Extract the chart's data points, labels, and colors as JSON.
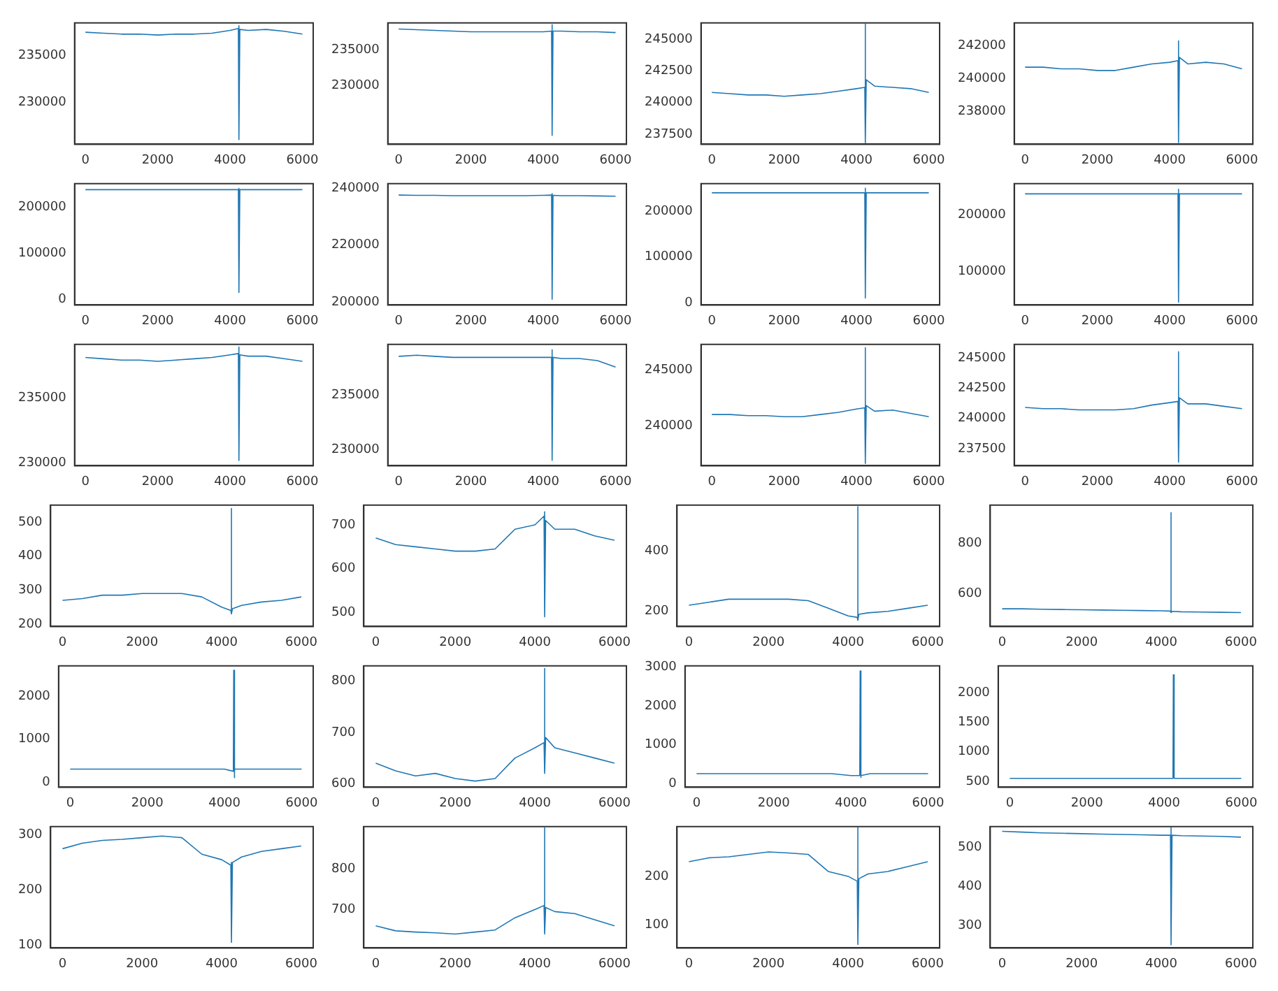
{
  "chart_data": [
    {
      "type": "line",
      "color": "#1f77b4",
      "xlim": [
        -300,
        6300
      ],
      "xticks": [
        0,
        2000,
        4000,
        6000
      ],
      "ylim": [
        225500,
        238500
      ],
      "yticks": [
        230000,
        235000
      ],
      "x": [
        0,
        500,
        1000,
        1500,
        2000,
        2500,
        3000,
        3500,
        4000,
        4230,
        4240,
        4250,
        4270,
        4500,
        5000,
        5500,
        6000
      ],
      "values": [
        237500,
        237400,
        237300,
        237300,
        237200,
        237300,
        237300,
        237400,
        237700,
        237900,
        238200,
        226000,
        237800,
        237700,
        237800,
        237600,
        237300
      ]
    },
    {
      "type": "line",
      "color": "#1f77b4",
      "xlim": [
        -300,
        6300
      ],
      "xticks": [
        0,
        2000,
        4000,
        6000
      ],
      "ylim": [
        221750,
        238750
      ],
      "yticks": [
        230000,
        235000
      ],
      "x": [
        0,
        500,
        1000,
        1500,
        2000,
        2500,
        3000,
        3500,
        4000,
        4230,
        4240,
        4250,
        4270,
        4500,
        5000,
        5500,
        6000
      ],
      "values": [
        237900,
        237800,
        237700,
        237600,
        237500,
        237500,
        237500,
        237500,
        237500,
        237600,
        238500,
        223000,
        237600,
        237600,
        237500,
        237500,
        237400
      ]
    },
    {
      "type": "line",
      "color": "#1f77b4",
      "xlim": [
        -300,
        6300
      ],
      "xticks": [
        0,
        2000,
        4000,
        6000
      ],
      "ylim": [
        236700,
        246300
      ],
      "yticks": [
        237500,
        240000,
        242500,
        245000
      ],
      "x": [
        0,
        500,
        1000,
        1500,
        2000,
        2500,
        3000,
        3500,
        4000,
        4230,
        4240,
        4250,
        4270,
        4500,
        5000,
        5500,
        6000
      ],
      "values": [
        240800,
        240700,
        240600,
        240600,
        240500,
        240600,
        240700,
        240900,
        241100,
        241200,
        246200,
        236800,
        241800,
        241300,
        241200,
        241100,
        240800
      ]
    },
    {
      "type": "line",
      "color": "#1f77b4",
      "xlim": [
        -300,
        6300
      ],
      "xticks": [
        0,
        2000,
        4000,
        6000
      ],
      "ylim": [
        236000,
        243400
      ],
      "yticks": [
        238000,
        240000,
        242000
      ],
      "x": [
        0,
        500,
        1000,
        1500,
        2000,
        2500,
        3000,
        3500,
        4000,
        4230,
        4240,
        4250,
        4270,
        4500,
        5000,
        5500,
        6000
      ],
      "values": [
        240700,
        240700,
        240600,
        240600,
        240500,
        240500,
        240700,
        240900,
        241000,
        241100,
        242300,
        236100,
        241300,
        240900,
        241000,
        240900,
        240600
      ]
    },
    {
      "type": "line",
      "color": "#1f77b4",
      "xlim": [
        -300,
        6300
      ],
      "xticks": [
        0,
        2000,
        4000,
        6000
      ],
      "ylim": [
        -12000,
        250000
      ],
      "yticks": [
        0,
        100000,
        200000
      ],
      "x": [
        0,
        500,
        1000,
        1500,
        2000,
        2500,
        3000,
        3500,
        4000,
        4230,
        4240,
        4250,
        4270,
        4500,
        5000,
        5500,
        6000
      ],
      "values": [
        237000,
        237000,
        237000,
        237000,
        237000,
        237000,
        237000,
        237000,
        237000,
        237000,
        240000,
        15000,
        237000,
        237000,
        237000,
        237000,
        237000
      ]
    },
    {
      "type": "line",
      "color": "#1f77b4",
      "xlim": [
        -300,
        6300
      ],
      "xticks": [
        0,
        2000,
        4000,
        6000
      ],
      "ylim": [
        199000,
        241500
      ],
      "yticks": [
        200000,
        220000,
        240000
      ],
      "x": [
        0,
        500,
        1000,
        1500,
        2000,
        2500,
        3000,
        3500,
        4000,
        4230,
        4240,
        4250,
        4270,
        4500,
        5000,
        5500,
        6000
      ],
      "values": [
        237500,
        237400,
        237400,
        237300,
        237300,
        237300,
        237300,
        237300,
        237400,
        237500,
        238000,
        201000,
        237400,
        237300,
        237300,
        237200,
        237100
      ]
    },
    {
      "type": "line",
      "color": "#1f77b4",
      "xlim": [
        -300,
        6300
      ],
      "xticks": [
        0,
        2000,
        4000,
        6000
      ],
      "ylim": [
        -5000,
        260000
      ],
      "yticks": [
        0,
        100000,
        200000
      ],
      "x": [
        0,
        500,
        1000,
        1500,
        2000,
        2500,
        3000,
        3500,
        4000,
        4230,
        4240,
        4250,
        4270,
        4500,
        5000,
        5500,
        6000
      ],
      "values": [
        240000,
        240000,
        240000,
        240000,
        240000,
        240000,
        240000,
        240000,
        240000,
        240000,
        250000,
        10000,
        240000,
        240000,
        240000,
        240000,
        240000
      ]
    },
    {
      "type": "line",
      "color": "#1f77b4",
      "xlim": [
        -300,
        6300
      ],
      "xticks": [
        0,
        2000,
        4000,
        6000
      ],
      "ylim": [
        40000,
        255000
      ],
      "yticks": [
        100000,
        200000
      ],
      "x": [
        0,
        500,
        1000,
        1500,
        2000,
        2500,
        3000,
        3500,
        4000,
        4230,
        4240,
        4250,
        4270,
        4500,
        5000,
        5500,
        6000
      ],
      "values": [
        237000,
        237000,
        237000,
        237000,
        237000,
        237000,
        237000,
        237000,
        237000,
        237000,
        245000,
        45000,
        237000,
        237000,
        237000,
        237000,
        237000
      ]
    },
    {
      "type": "line",
      "color": "#1f77b4",
      "xlim": [
        -300,
        6300
      ],
      "xticks": [
        0,
        2000,
        4000,
        6000
      ],
      "ylim": [
        229800,
        239100
      ],
      "yticks": [
        230000,
        235000
      ],
      "x": [
        0,
        500,
        1000,
        1500,
        2000,
        2500,
        3000,
        3500,
        4000,
        4230,
        4240,
        4250,
        4270,
        4500,
        5000,
        5500,
        6000
      ],
      "values": [
        238100,
        238000,
        237900,
        237900,
        237800,
        237900,
        238000,
        238100,
        238300,
        238400,
        238900,
        230200,
        238300,
        238200,
        238200,
        238000,
        237800
      ]
    },
    {
      "type": "line",
      "color": "#1f77b4",
      "xlim": [
        -300,
        6300
      ],
      "xticks": [
        0,
        2000,
        4000,
        6000
      ],
      "ylim": [
        228500,
        239700
      ],
      "yticks": [
        230000,
        235000
      ],
      "x": [
        0,
        500,
        1000,
        1500,
        2000,
        2500,
        3000,
        3500,
        4000,
        4230,
        4240,
        4250,
        4270,
        4500,
        5000,
        5500,
        6000
      ],
      "values": [
        238600,
        238700,
        238600,
        238500,
        238500,
        238500,
        238500,
        238500,
        238500,
        238500,
        239200,
        229000,
        238500,
        238400,
        238400,
        238200,
        237600
      ]
    },
    {
      "type": "line",
      "color": "#1f77b4",
      "xlim": [
        -300,
        6300
      ],
      "xticks": [
        0,
        2000,
        4000,
        6000
      ],
      "ylim": [
        236400,
        247300
      ],
      "yticks": [
        240000,
        245000
      ],
      "x": [
        0,
        500,
        1000,
        1500,
        2000,
        2500,
        3000,
        3500,
        4000,
        4230,
        4240,
        4250,
        4270,
        4500,
        5000,
        5500,
        6000
      ],
      "values": [
        241000,
        241000,
        240900,
        240900,
        240800,
        240800,
        241000,
        241200,
        241500,
        241600,
        247000,
        236600,
        241800,
        241300,
        241400,
        241100,
        240800
      ]
    },
    {
      "type": "line",
      "color": "#1f77b4",
      "xlim": [
        -300,
        6300
      ],
      "xticks": [
        0,
        2000,
        4000,
        6000
      ],
      "ylim": [
        236100,
        246100
      ],
      "yticks": [
        237500,
        240000,
        242500,
        245000
      ],
      "x": [
        0,
        500,
        1000,
        1500,
        2000,
        2500,
        3000,
        3500,
        4000,
        4230,
        4240,
        4250,
        4270,
        4500,
        5000,
        5500,
        6000
      ],
      "values": [
        240900,
        240800,
        240800,
        240700,
        240700,
        240700,
        240800,
        241100,
        241300,
        241400,
        245500,
        236400,
        241700,
        241200,
        241200,
        241000,
        240800
      ]
    },
    {
      "type": "line",
      "color": "#1f77b4",
      "xlim": [
        -300,
        6300
      ],
      "xticks": [
        0,
        2000,
        4000,
        6000
      ],
      "ylim": [
        193,
        550
      ],
      "yticks": [
        200,
        300,
        400,
        500
      ],
      "x": [
        0,
        500,
        1000,
        1500,
        2000,
        2500,
        3000,
        3500,
        4000,
        4230,
        4240,
        4250,
        4270,
        4500,
        5000,
        5500,
        6000
      ],
      "values": [
        270,
        275,
        285,
        285,
        290,
        290,
        290,
        280,
        250,
        240,
        540,
        230,
        245,
        255,
        265,
        270,
        280
      ]
    },
    {
      "type": "line",
      "color": "#1f77b4",
      "xlim": [
        -300,
        6300
      ],
      "xticks": [
        0,
        2000,
        4000,
        6000
      ],
      "ylim": [
        468,
        745
      ],
      "yticks": [
        500,
        600,
        700
      ],
      "x": [
        0,
        500,
        1000,
        1500,
        2000,
        2500,
        3000,
        3500,
        4000,
        4230,
        4240,
        4250,
        4270,
        4500,
        5000,
        5500,
        6000
      ],
      "values": [
        670,
        655,
        650,
        645,
        640,
        640,
        645,
        690,
        700,
        720,
        730,
        490,
        710,
        690,
        690,
        675,
        665
      ]
    },
    {
      "type": "line",
      "color": "#1f77b4",
      "xlim": [
        -300,
        6300
      ],
      "xticks": [
        0,
        2000,
        4000,
        6000
      ],
      "ylim": [
        150,
        550
      ],
      "yticks": [
        200,
        400
      ],
      "x": [
        0,
        500,
        1000,
        1500,
        2000,
        2500,
        3000,
        3500,
        4000,
        4230,
        4240,
        4250,
        4270,
        4500,
        5000,
        5500,
        6000
      ],
      "values": [
        220,
        230,
        240,
        240,
        240,
        240,
        235,
        210,
        185,
        180,
        545,
        170,
        190,
        195,
        200,
        210,
        220
      ]
    },
    {
      "type": "line",
      "color": "#1f77b4",
      "xlim": [
        -300,
        6300
      ],
      "xticks": [
        0,
        2000,
        4000,
        6000
      ],
      "ylim": [
        470,
        950
      ],
      "yticks": [
        600,
        800
      ],
      "x": [
        0,
        500,
        1000,
        1500,
        2000,
        2500,
        3000,
        3500,
        4000,
        4230,
        4240,
        4250,
        4270,
        4500,
        5000,
        5500,
        6000
      ],
      "values": [
        540,
        540,
        538,
        537,
        536,
        535,
        534,
        533,
        532,
        531,
        920,
        525,
        530,
        528,
        527,
        526,
        525
      ]
    },
    {
      "type": "line",
      "color": "#1f77b4",
      "xlim": [
        -300,
        6300
      ],
      "xticks": [
        0,
        2000,
        4000,
        6000
      ],
      "ylim": [
        -120,
        2700
      ],
      "yticks": [
        0,
        1000,
        2000
      ],
      "x": [
        0,
        500,
        1000,
        1500,
        2000,
        2500,
        3000,
        3500,
        4000,
        4230,
        4240,
        4250,
        4270,
        4500,
        5000,
        5500,
        6000
      ],
      "values": [
        300,
        300,
        300,
        300,
        300,
        300,
        300,
        300,
        300,
        250,
        2600,
        100,
        300,
        300,
        300,
        300,
        300
      ]
    },
    {
      "type": "line",
      "color": "#1f77b4",
      "xlim": [
        -300,
        6300
      ],
      "xticks": [
        0,
        2000,
        4000,
        6000
      ],
      "ylim": [
        593,
        830
      ],
      "yticks": [
        600,
        700,
        800
      ],
      "x": [
        0,
        500,
        1000,
        1500,
        2000,
        2500,
        3000,
        3500,
        4000,
        4230,
        4240,
        4250,
        4270,
        4500,
        5000,
        5500,
        6000
      ],
      "values": [
        640,
        625,
        615,
        620,
        610,
        605,
        610,
        650,
        670,
        680,
        825,
        620,
        690,
        670,
        660,
        650,
        640
      ]
    },
    {
      "type": "line",
      "color": "#1f77b4",
      "xlim": [
        -300,
        6300
      ],
      "xticks": [
        0,
        2000,
        4000,
        6000
      ],
      "ylim": [
        -100,
        3030
      ],
      "yticks": [
        0,
        1000,
        2000,
        3000
      ],
      "x": [
        0,
        500,
        1000,
        1500,
        2000,
        2500,
        3000,
        3500,
        4000,
        4230,
        4240,
        4250,
        4270,
        4500,
        5000,
        5500,
        6000
      ],
      "values": [
        250,
        250,
        250,
        250,
        250,
        250,
        250,
        250,
        200,
        200,
        2900,
        150,
        200,
        250,
        250,
        250,
        250
      ]
    },
    {
      "type": "line",
      "color": "#1f77b4",
      "xlim": [
        -300,
        6300
      ],
      "xticks": [
        0,
        2000,
        4000,
        6000
      ],
      "ylim": [
        400,
        2450
      ],
      "yticks": [
        500,
        1000,
        1500,
        2000
      ],
      "x": [
        0,
        500,
        1000,
        1500,
        2000,
        2500,
        3000,
        3500,
        4000,
        4230,
        4240,
        4250,
        4270,
        4500,
        5000,
        5500,
        6000
      ],
      "values": [
        550,
        550,
        550,
        550,
        550,
        550,
        550,
        550,
        550,
        550,
        2300,
        550,
        550,
        550,
        550,
        550,
        550
      ]
    },
    {
      "type": "line",
      "color": "#1f77b4",
      "xlim": [
        -300,
        6300
      ],
      "xticks": [
        0,
        2000,
        4000,
        6000
      ],
      "ylim": [
        95,
        315
      ],
      "yticks": [
        100,
        200,
        300
      ],
      "x": [
        0,
        500,
        1000,
        1500,
        2000,
        2500,
        3000,
        3500,
        4000,
        4230,
        4240,
        4250,
        4270,
        4500,
        5000,
        5500,
        6000
      ],
      "values": [
        275,
        285,
        290,
        292,
        295,
        298,
        295,
        265,
        255,
        245,
        250,
        105,
        250,
        260,
        270,
        275,
        280
      ]
    },
    {
      "type": "line",
      "color": "#1f77b4",
      "xlim": [
        -300,
        6300
      ],
      "xticks": [
        0,
        2000,
        4000,
        6000
      ],
      "ylim": [
        606,
        903
      ],
      "yticks": [
        700,
        800
      ],
      "x": [
        0,
        500,
        1000,
        1500,
        2000,
        2500,
        3000,
        3500,
        4000,
        4230,
        4240,
        4250,
        4270,
        4500,
        5000,
        5500,
        6000
      ],
      "values": [
        660,
        648,
        645,
        643,
        640,
        645,
        650,
        680,
        700,
        710,
        900,
        640,
        705,
        695,
        690,
        675,
        660
      ]
    },
    {
      "type": "line",
      "color": "#1f77b4",
      "xlim": [
        -300,
        6300
      ],
      "xticks": [
        0,
        2000,
        4000,
        6000
      ],
      "ylim": [
        53,
        302
      ],
      "yticks": [
        100,
        200
      ],
      "x": [
        0,
        500,
        1000,
        1500,
        2000,
        2500,
        3000,
        3500,
        4000,
        4230,
        4240,
        4250,
        4270,
        4500,
        5000,
        5500,
        6000
      ],
      "values": [
        230,
        238,
        240,
        245,
        250,
        248,
        245,
        210,
        200,
        190,
        300,
        60,
        195,
        205,
        210,
        220,
        230
      ]
    },
    {
      "type": "line",
      "color": "#1f77b4",
      "xlim": [
        -300,
        6300
      ],
      "xticks": [
        0,
        2000,
        4000,
        6000
      ],
      "ylim": [
        242,
        552
      ],
      "yticks": [
        300,
        400,
        500
      ],
      "x": [
        0,
        500,
        1000,
        1500,
        2000,
        2500,
        3000,
        3500,
        4000,
        4230,
        4240,
        4250,
        4270,
        4500,
        5000,
        5500,
        6000
      ],
      "values": [
        540,
        538,
        536,
        535,
        534,
        533,
        532,
        531,
        530,
        530,
        550,
        250,
        530,
        529,
        528,
        527,
        525
      ]
    }
  ]
}
